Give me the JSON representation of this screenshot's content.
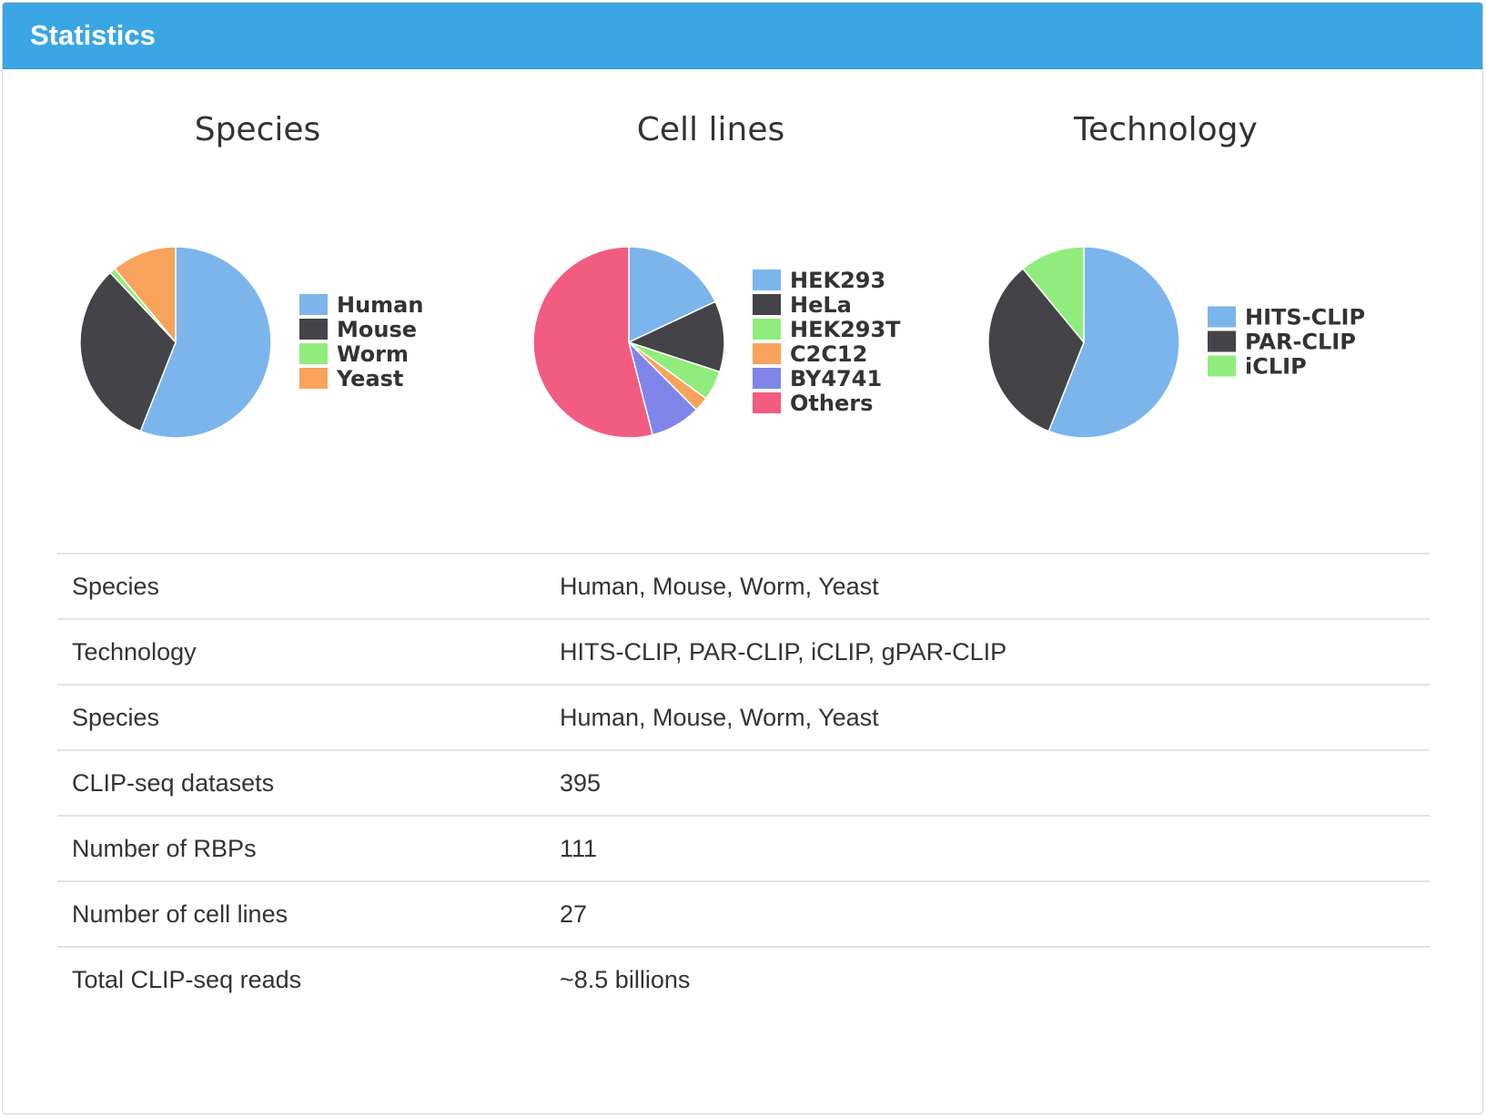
{
  "panel": {
    "title": "Statistics"
  },
  "chart_data": [
    {
      "type": "pie",
      "title": "Species",
      "categories": [
        "Human",
        "Mouse",
        "Worm",
        "Yeast"
      ],
      "values": [
        56,
        32,
        1,
        11
      ],
      "colors": [
        "#7cb5ec",
        "#434348",
        "#90ed7d",
        "#f7a35c"
      ],
      "legend": "right"
    },
    {
      "type": "pie",
      "title": "Cell lines",
      "categories": [
        "HEK293",
        "HeLa",
        "HEK293T",
        "C2C12",
        "BY4741",
        "Others"
      ],
      "values": [
        18,
        12,
        5,
        2.5,
        8.5,
        54
      ],
      "colors": [
        "#7cb5ec",
        "#434348",
        "#90ed7d",
        "#f7a35c",
        "#8085e9",
        "#f15c80"
      ],
      "legend": "right"
    },
    {
      "type": "pie",
      "title": "Technology",
      "categories": [
        "HITS-CLIP",
        "PAR-CLIP",
        "iCLIP"
      ],
      "values": [
        56,
        33,
        11
      ],
      "colors": [
        "#7cb5ec",
        "#434348",
        "#90ed7d"
      ],
      "legend": "right"
    }
  ],
  "stats": [
    {
      "label": "Species",
      "value": "Human, Mouse, Worm, Yeast"
    },
    {
      "label": "Technology",
      "value": "HITS-CLIP, PAR-CLIP, iCLIP, gPAR-CLIP"
    },
    {
      "label": "Species",
      "value": "Human, Mouse, Worm, Yeast"
    },
    {
      "label": "CLIP-seq datasets",
      "value": "395"
    },
    {
      "label": "Number of RBPs",
      "value": "111"
    },
    {
      "label": "Number of cell lines",
      "value": "27"
    },
    {
      "label": "Total CLIP-seq reads",
      "value": "~8.5 billions"
    }
  ]
}
